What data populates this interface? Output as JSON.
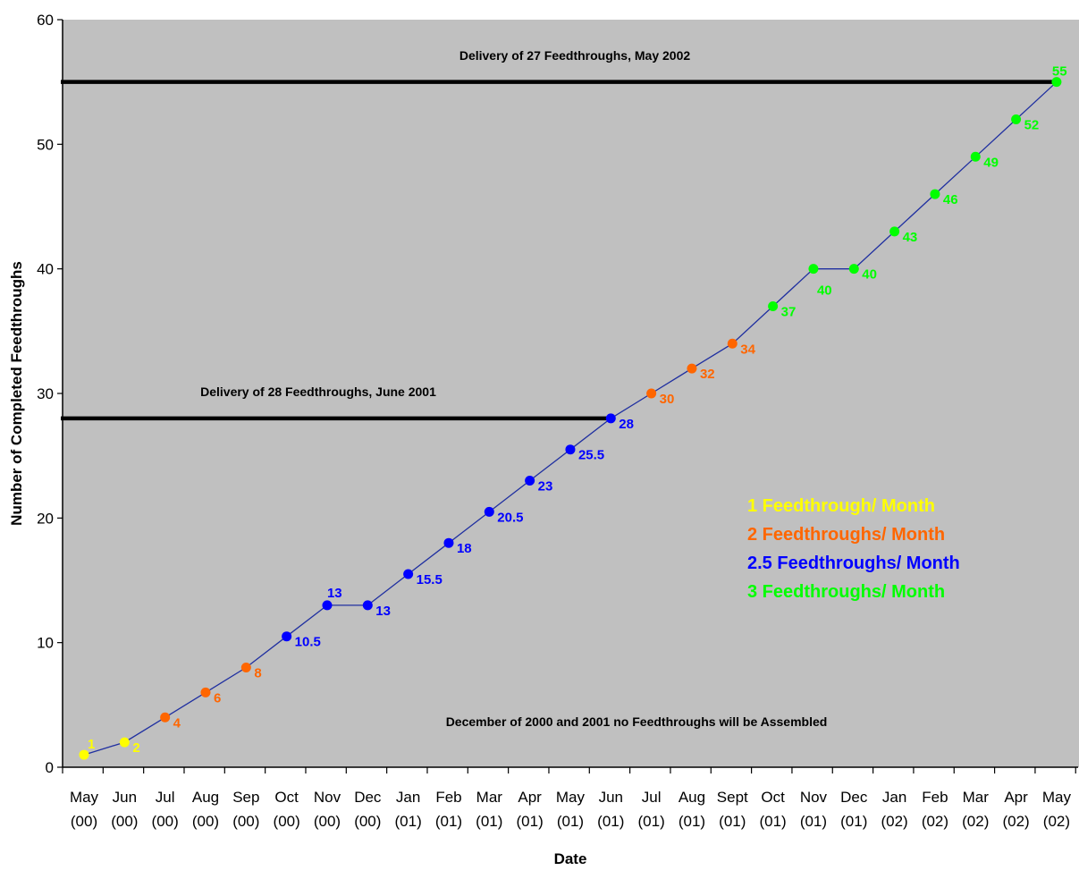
{
  "chart_data": {
    "type": "line",
    "xlabel": "Date",
    "ylabel": "Number of Completed Feedthroughs",
    "ylim": [
      0,
      60
    ],
    "yticks": [
      0,
      10,
      20,
      30,
      40,
      50,
      60
    ],
    "grid": false,
    "plot_background": "#c0c0c0",
    "line_color": "#1f2fa0",
    "categories": [
      {
        "month": "May",
        "year": "(00)"
      },
      {
        "month": "Jun",
        "year": "(00)"
      },
      {
        "month": "Jul",
        "year": "(00)"
      },
      {
        "month": "Aug",
        "year": "(00)"
      },
      {
        "month": "Sep",
        "year": "(00)"
      },
      {
        "month": "Oct",
        "year": "(00)"
      },
      {
        "month": "Nov",
        "year": "(00)"
      },
      {
        "month": "Dec",
        "year": "(00)"
      },
      {
        "month": "Jan",
        "year": "(01)"
      },
      {
        "month": "Feb",
        "year": "(01)"
      },
      {
        "month": "Mar",
        "year": "(01)"
      },
      {
        "month": "Apr",
        "year": "(01)"
      },
      {
        "month": "May",
        "year": "(01)"
      },
      {
        "month": "Jun",
        "year": "(01)"
      },
      {
        "month": "Jul",
        "year": "(01)"
      },
      {
        "month": "Aug",
        "year": "(01)"
      },
      {
        "month": "Sept",
        "year": "(01)"
      },
      {
        "month": "Oct",
        "year": "(01)"
      },
      {
        "month": "Nov",
        "year": "(01)"
      },
      {
        "month": "Dec",
        "year": "(01)"
      },
      {
        "month": "Jan",
        "year": "(02)"
      },
      {
        "month": "Feb",
        "year": "(02)"
      },
      {
        "month": "Mar",
        "year": "(02)"
      },
      {
        "month": "Apr",
        "year": "(02)"
      },
      {
        "month": "May",
        "year": "(02)"
      }
    ],
    "values": [
      1,
      2,
      4,
      6,
      8,
      10.5,
      13,
      13,
      15.5,
      18,
      20.5,
      23,
      25.5,
      28,
      30,
      32,
      34,
      37,
      40,
      40,
      43,
      46,
      49,
      52,
      55
    ],
    "point_labels": [
      "1",
      "2",
      "4",
      "6",
      "8",
      "10.5",
      "13",
      "13",
      "15.5",
      "18",
      "20.5",
      "23",
      "25.5",
      "28",
      "30",
      "32",
      "34",
      "37",
      "40",
      "40",
      "43",
      "46",
      "49",
      "52",
      "55"
    ],
    "point_rate_groups": [
      0,
      0,
      1,
      1,
      1,
      2,
      2,
      2,
      2,
      2,
      2,
      2,
      2,
      2,
      1,
      1,
      1,
      3,
      3,
      3,
      3,
      3,
      3,
      3,
      3
    ],
    "legend": {
      "placement": "right-center",
      "entries": [
        {
          "label": "1 Feedthrough/ Month",
          "color": "#ffff00"
        },
        {
          "label": "2 Feedthroughs/ Month",
          "color": "#ff6600"
        },
        {
          "label": "2.5 Feedthroughs/ Month",
          "color": "#0000ff"
        },
        {
          "label": "3 Feedthroughs/ Month",
          "color": "#00ff00"
        }
      ]
    },
    "reference_lines": [
      {
        "label": "Delivery of 27 Feedthroughs, May 2002",
        "y": 55,
        "x_start": "start",
        "x_end": "May (02)",
        "color": "#000000"
      },
      {
        "label": "Delivery of 28 Feedthroughs, June 2001",
        "y": 28,
        "x_start": "start",
        "x_end": "Jun (01)",
        "color": "#000000"
      }
    ],
    "annotations": [
      {
        "text": "December of 2000 and 2001 no Feedthroughs will be Assembled"
      }
    ]
  }
}
